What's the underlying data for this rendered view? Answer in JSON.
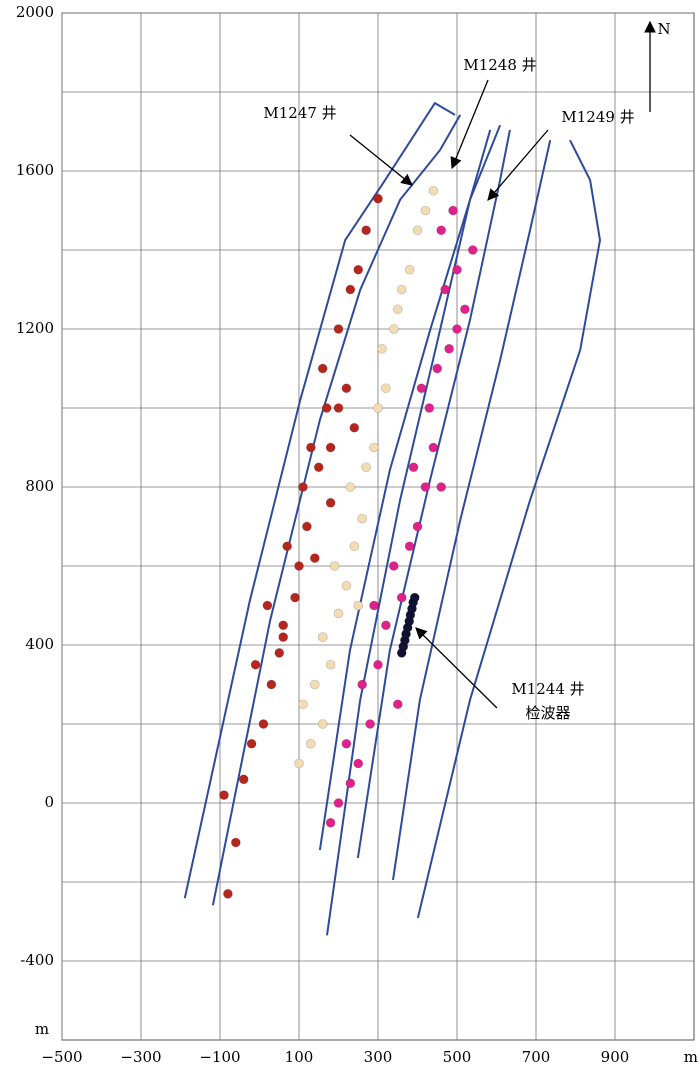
{
  "chart_data": {
    "type": "scatter",
    "xlim": [
      -500,
      1100
    ],
    "ylim": [
      -600,
      2000
    ],
    "xticks": [
      {
        "value": -500,
        "label": "−500"
      },
      {
        "value": -300,
        "label": "−300"
      },
      {
        "value": -100,
        "label": "−100"
      },
      100,
      300,
      500,
      700,
      900
    ],
    "yticks": [
      -400,
      0,
      400,
      800,
      1200,
      1600,
      2000
    ],
    "yminorticks": [
      -200,
      200,
      600,
      1000,
      1400,
      1800
    ],
    "grid": true,
    "xlabel": "m",
    "ylabel": "m",
    "north": "N",
    "annotations": [
      "M1247 井",
      "M1248 井",
      "M1249 井",
      "M1244 井",
      "检波器"
    ],
    "series": [
      {
        "type": "line",
        "color": "#2e4a9e",
        "x": [
          -189,
          -24,
          103,
          217,
          318,
          444,
          495
        ],
        "y": [
          -241,
          514,
          1020,
          1425,
          1577,
          1772,
          1742
        ]
      },
      {
        "type": "line",
        "color": "#2e4a9e",
        "x": [
          -118,
          27,
          153,
          255,
          356,
          457,
          508
        ],
        "y": [
          -259,
          463,
          970,
          1299,
          1527,
          1653,
          1742
        ]
      },
      {
        "type": "line",
        "color": "#2e4a9e",
        "x": [
          171,
          255,
          356,
          457,
          533,
          584
        ],
        "y": [
          -335,
          261,
          767,
          1197,
          1527,
          1704
        ]
      },
      {
        "type": "line",
        "color": "#2e4a9e",
        "x": [
          153,
          229,
          330,
          432,
          533,
          609
        ],
        "y": [
          -119,
          387,
          843,
          1197,
          1527,
          1716
        ]
      },
      {
        "type": "line",
        "color": "#2e4a9e",
        "x": [
          249,
          330,
          432,
          533,
          609,
          634
        ],
        "y": [
          -139,
          387,
          818,
          1223,
          1577,
          1704
        ]
      },
      {
        "type": "line",
        "color": "#2e4a9e",
        "x": [
          338,
          406,
          508,
          609,
          685,
          736
        ],
        "y": [
          -195,
          261,
          716,
          1121,
          1451,
          1678
        ]
      },
      {
        "type": "line",
        "color": "#2e4a9e",
        "x": [
          401,
          533,
          685,
          812,
          862,
          837,
          786
        ],
        "y": [
          -291,
          261,
          767,
          1147,
          1425,
          1577,
          1678
        ]
      },
      {
        "type": "scatter",
        "color": "#b5261e",
        "x": [
          -80,
          -60,
          -90,
          -40,
          -20,
          10,
          30,
          -10,
          50,
          60,
          20,
          90,
          100,
          70,
          120,
          140,
          110,
          150,
          180,
          130,
          200,
          170,
          220,
          160,
          200,
          230,
          250,
          270,
          300,
          180,
          60,
          240
        ],
        "y": [
          -230,
          -100,
          20,
          60,
          150,
          200,
          300,
          350,
          380,
          450,
          500,
          520,
          600,
          650,
          700,
          620,
          800,
          850,
          900,
          900,
          1000,
          1000,
          1050,
          1100,
          1200,
          1300,
          1350,
          1450,
          1530,
          760,
          420,
          950
        ]
      },
      {
        "type": "scatter",
        "color": "#f2dcb4",
        "x": [
          100,
          130,
          110,
          160,
          140,
          180,
          160,
          200,
          220,
          190,
          240,
          260,
          230,
          270,
          290,
          300,
          320,
          310,
          340,
          360,
          380,
          400,
          420,
          440,
          250,
          350
        ],
        "y": [
          100,
          150,
          250,
          200,
          300,
          350,
          420,
          480,
          550,
          600,
          650,
          720,
          800,
          850,
          900,
          1000,
          1050,
          1150,
          1200,
          1300,
          1350,
          1450,
          1500,
          1550,
          500,
          1250
        ]
      },
      {
        "type": "scatter",
        "color": "#e0218a",
        "x": [
          180,
          200,
          230,
          250,
          220,
          280,
          260,
          300,
          320,
          290,
          360,
          340,
          380,
          400,
          420,
          390,
          440,
          460,
          430,
          450,
          480,
          500,
          520,
          470,
          500,
          540,
          460,
          490,
          410,
          350
        ],
        "y": [
          -50,
          0,
          50,
          100,
          150,
          200,
          300,
          350,
          450,
          500,
          520,
          600,
          650,
          700,
          800,
          850,
          900,
          800,
          1000,
          1100,
          1150,
          1200,
          1250,
          1300,
          1350,
          1400,
          1450,
          1500,
          1050,
          250
        ]
      },
      {
        "type": "scatter",
        "color": "#111133",
        "x": [
          360,
          364,
          368,
          371,
          375,
          379,
          382,
          386,
          389,
          393
        ],
        "y": [
          380,
          396,
          412,
          428,
          444,
          460,
          476,
          492,
          508,
          520
        ]
      }
    ]
  }
}
